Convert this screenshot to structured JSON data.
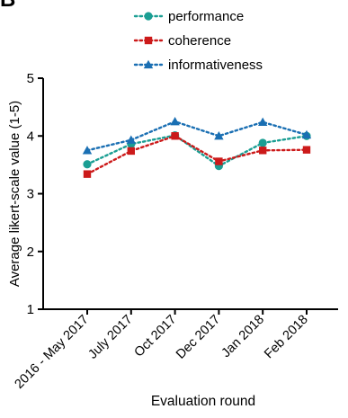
{
  "panel_label": "B",
  "chart_data": {
    "type": "line",
    "xlabel": "Evaluation round",
    "ylabel": "Average likert-scale value (1-5)",
    "categories": [
      "2016 - May 2017",
      "July 2017",
      "Oct 2017",
      "Dec 2017",
      "Jan 2018",
      "Feb 2018"
    ],
    "ylim": [
      1,
      5
    ],
    "yticks": [
      1,
      2,
      3,
      4,
      5
    ],
    "grid": false,
    "legend_position": "top",
    "series": [
      {
        "name": "performance",
        "values": [
          3.51,
          3.86,
          4.01,
          3.48,
          3.88,
          4.0
        ],
        "color": "#1a9e93",
        "marker": "circle"
      },
      {
        "name": "coherence",
        "values": [
          3.34,
          3.74,
          4.0,
          3.56,
          3.75,
          3.76
        ],
        "color": "#cc1a1a",
        "marker": "square"
      },
      {
        "name": "informativeness",
        "values": [
          3.75,
          3.93,
          4.25,
          4.0,
          4.24,
          4.02
        ],
        "color": "#1a6fb3",
        "marker": "triangle"
      }
    ]
  }
}
